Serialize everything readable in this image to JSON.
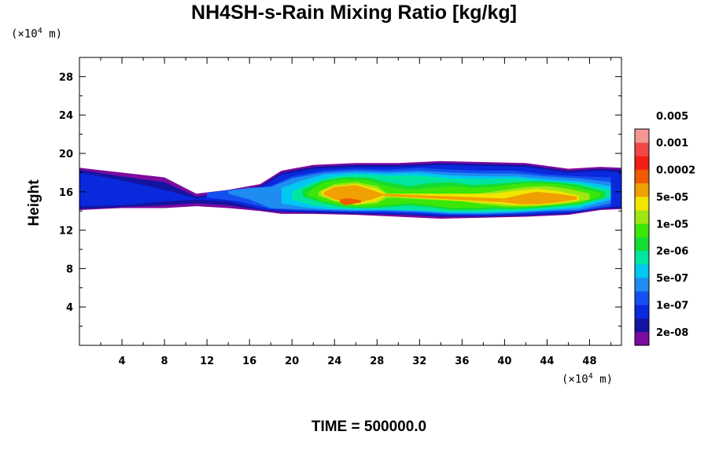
{
  "chart_data": {
    "type": "heatmap",
    "title": "NH4SH-s-Rain Mixing Ratio [kg/kg]",
    "ylabel": "Height",
    "xlabel": "",
    "x_unit": "m",
    "y_unit": "m",
    "unit_base": "10",
    "unit_exp": "4",
    "xlim": [
      0,
      51
    ],
    "ylim": [
      0,
      30
    ],
    "x_ticks": [
      "4",
      "8",
      "12",
      "16",
      "20",
      "24",
      "28",
      "32",
      "36",
      "40",
      "44",
      "48"
    ],
    "y_ticks": [
      "4",
      "8",
      "12",
      "16",
      "20",
      "24",
      "28"
    ],
    "footer": "TIME = 500000.0",
    "colorbar": {
      "colors": [
        "#7d0aa0",
        "#1414a0",
        "#0a28dc",
        "#1450f0",
        "#1e8cf0",
        "#00c8f0",
        "#00e6a0",
        "#14dc32",
        "#3ce60a",
        "#a0e614",
        "#f0e600",
        "#f0a000",
        "#f05a00",
        "#f01e14",
        "#f04646",
        "#f59696"
      ],
      "labels": [
        "2e-08",
        "1e-07",
        "5e-07",
        "2e-06",
        "1e-05",
        "5e-05",
        "0.0002",
        "0.001",
        "0.005"
      ]
    },
    "layers": [
      {
        "level": 0,
        "color": "#7d0aa0",
        "x": [
          0,
          4,
          8,
          11,
          14,
          17,
          19,
          22,
          26,
          30,
          34,
          38,
          42,
          46,
          49,
          51
        ],
        "bottom": [
          14.1,
          14.3,
          14.3,
          14.5,
          14.3,
          14.0,
          13.7,
          13.7,
          13.6,
          13.4,
          13.2,
          13.3,
          13.4,
          13.6,
          14.1,
          14.2
        ],
        "top": [
          18.5,
          18.0,
          17.5,
          15.8,
          16.2,
          16.8,
          18.2,
          18.8,
          19.0,
          19.0,
          19.2,
          19.1,
          19.0,
          18.4,
          18.6,
          18.5
        ]
      },
      {
        "level": 1,
        "color": "#1414a0",
        "x": [
          0,
          4,
          8,
          11,
          14,
          17,
          19,
          22,
          26,
          30,
          34,
          38,
          42,
          46,
          49,
          51
        ],
        "bottom": [
          14.2,
          14.4,
          14.6,
          14.8,
          14.6,
          14.1,
          13.9,
          13.8,
          13.7,
          13.6,
          13.4,
          13.4,
          13.5,
          13.7,
          14.2,
          14.3
        ],
        "top": [
          18.3,
          17.6,
          17.0,
          15.5,
          16.0,
          16.6,
          18.0,
          18.6,
          18.8,
          18.8,
          19.0,
          18.9,
          18.8,
          18.2,
          18.4,
          18.3
        ]
      },
      {
        "level": 2,
        "color": "#0a28dc",
        "x": [
          0,
          4,
          8,
          11,
          14,
          17,
          19,
          22,
          26,
          30,
          34,
          38,
          42,
          46,
          49,
          51
        ],
        "bottom": [
          14.5,
          14.6,
          15.0,
          15.2,
          15.0,
          14.2,
          14.0,
          13.9,
          13.8,
          13.7,
          13.5,
          13.5,
          13.6,
          13.8,
          14.3,
          14.5
        ],
        "top": [
          18.0,
          17.2,
          16.2,
          15.3,
          15.8,
          16.4,
          17.8,
          18.4,
          18.6,
          18.6,
          18.8,
          18.7,
          18.6,
          18.0,
          18.2,
          18.0
        ]
      },
      {
        "level": 3,
        "color": "#1450f0",
        "x": [
          12,
          15,
          18,
          20,
          23,
          26,
          29,
          32,
          35,
          38,
          41,
          44,
          47,
          50
        ],
        "bottom": [
          15.4,
          15.0,
          14.2,
          14.1,
          14.0,
          13.9,
          13.9,
          13.8,
          13.6,
          13.6,
          13.7,
          13.9,
          14.0,
          14.5
        ],
        "top": [
          15.9,
          16.3,
          16.6,
          17.6,
          18.2,
          18.4,
          18.3,
          18.5,
          18.3,
          18.2,
          18.2,
          17.8,
          17.6,
          17.5
        ]
      },
      {
        "level": 4,
        "color": "#1e8cf0",
        "x": [
          14,
          16,
          18,
          20,
          23,
          26,
          29,
          32,
          35,
          38,
          41,
          44,
          47,
          50
        ],
        "bottom": [
          15.8,
          15.2,
          14.3,
          14.2,
          14.1,
          14.0,
          14.0,
          13.9,
          13.7,
          13.7,
          13.8,
          14.0,
          14.1,
          14.8
        ],
        "top": [
          16.1,
          16.4,
          16.5,
          17.4,
          18.0,
          18.2,
          18.1,
          18.2,
          18.0,
          17.9,
          17.9,
          17.6,
          17.4,
          17.0
        ]
      },
      {
        "level": 5,
        "color": "#00c8f0",
        "x": [
          19,
          21,
          23,
          26,
          29,
          32,
          35,
          38,
          41,
          44,
          47,
          50
        ],
        "bottom": [
          14.8,
          14.4,
          14.2,
          14.1,
          14.1,
          14.0,
          13.8,
          13.8,
          13.9,
          14.1,
          14.3,
          15.2
        ],
        "top": [
          16.4,
          17.2,
          17.8,
          18.0,
          17.9,
          18.0,
          17.7,
          17.6,
          17.6,
          17.3,
          17.1,
          16.6
        ]
      },
      {
        "level": 6,
        "color": "#00e6a0",
        "x": [
          20,
          22,
          24,
          26,
          29,
          32,
          35,
          38,
          41,
          44,
          47,
          50
        ],
        "bottom": [
          15.2,
          14.6,
          14.3,
          14.2,
          14.2,
          14.1,
          13.9,
          13.9,
          14.0,
          14.2,
          14.5,
          15.5
        ],
        "top": [
          16.0,
          17.0,
          17.6,
          17.8,
          17.7,
          17.7,
          17.4,
          17.3,
          17.4,
          17.1,
          16.9,
          16.2
        ]
      },
      {
        "level": 7,
        "color": "#14dc32",
        "x": [
          21,
          23,
          25,
          27,
          29,
          31,
          33,
          35,
          37,
          39,
          41,
          43,
          45,
          47,
          49.5
        ],
        "bottom": [
          15.5,
          14.8,
          14.4,
          14.3,
          14.4,
          14.6,
          14.4,
          14.1,
          14.1,
          14.2,
          14.2,
          14.3,
          14.5,
          14.7,
          15.4
        ],
        "top": [
          16.2,
          17.2,
          17.5,
          17.5,
          17.0,
          16.6,
          16.9,
          17.0,
          16.7,
          16.8,
          17.0,
          17.1,
          17.0,
          16.7,
          16.0
        ]
      },
      {
        "level": 8,
        "color": "#3ce60a",
        "x": [
          21.5,
          23,
          25,
          27,
          29,
          31,
          33,
          35,
          37,
          39,
          41,
          43,
          45,
          47,
          49
        ],
        "bottom": [
          15.6,
          15.0,
          14.5,
          14.4,
          14.6,
          14.8,
          14.6,
          14.3,
          14.3,
          14.4,
          14.3,
          14.4,
          14.6,
          14.8,
          15.5
        ],
        "top": [
          16.0,
          17.0,
          17.3,
          17.2,
          16.6,
          16.2,
          16.4,
          16.6,
          16.4,
          16.5,
          16.8,
          16.9,
          16.8,
          16.4,
          15.9
        ]
      },
      {
        "level": 9,
        "color": "#a0e614",
        "x": [
          22.5,
          24,
          26,
          28,
          29,
          36,
          38,
          40,
          42,
          44,
          46,
          48
        ],
        "bottom": [
          15.6,
          15.0,
          14.6,
          14.8,
          15.4,
          15.0,
          14.7,
          14.5,
          14.5,
          14.6,
          14.8,
          15.2
        ],
        "top": [
          16.0,
          16.8,
          17.0,
          16.6,
          15.8,
          15.6,
          15.9,
          16.2,
          16.5,
          16.6,
          16.3,
          15.8
        ]
      },
      {
        "level": 10,
        "color": "#f0e600",
        "x": [
          22.8,
          24,
          26,
          28,
          28.8,
          39,
          41,
          43,
          45,
          47
        ],
        "bottom": [
          15.7,
          15.1,
          14.7,
          15.0,
          15.6,
          14.8,
          14.6,
          14.6,
          14.8,
          15.1
        ],
        "top": [
          16.1,
          16.6,
          16.8,
          16.3,
          15.8,
          15.8,
          16.1,
          16.3,
          16.1,
          15.6
        ]
      },
      {
        "level": 11,
        "color": "#f0a000",
        "x": [
          23,
          24,
          26,
          27.5,
          28.5,
          40,
          41.5,
          43,
          45,
          46.8
        ],
        "bottom": [
          15.7,
          15.2,
          14.8,
          15.2,
          15.6,
          14.9,
          14.7,
          14.7,
          14.9,
          15.2
        ],
        "top": [
          16.0,
          16.5,
          16.7,
          16.2,
          15.8,
          15.3,
          15.7,
          16.0,
          15.8,
          15.5
        ]
      },
      {
        "level": 12,
        "color": "#f05a00",
        "x": [
          24.5,
          25,
          25.5,
          26.5
        ],
        "bottom": [
          14.9,
          14.6,
          14.7,
          14.9
        ],
        "top": [
          15.2,
          15.3,
          15.3,
          15.1
        ]
      }
    ]
  }
}
